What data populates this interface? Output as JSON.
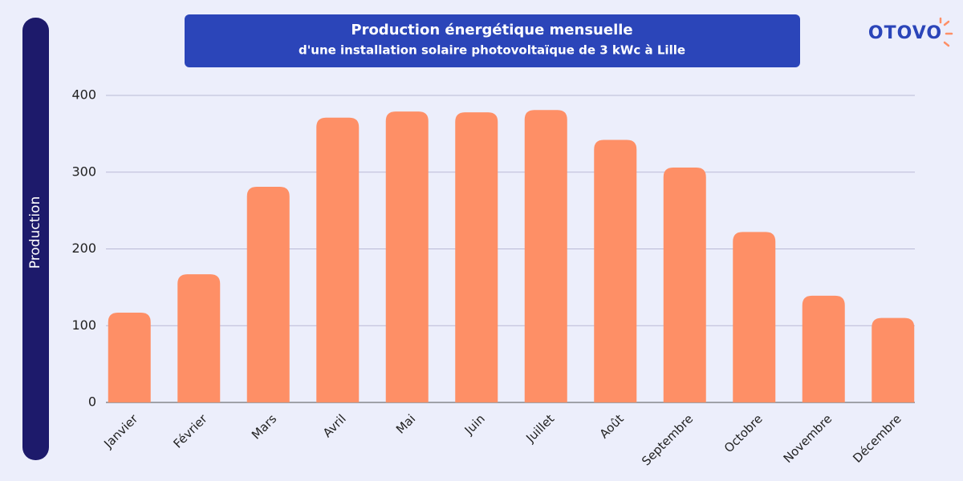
{
  "brand": "OTOVO",
  "chart_data": {
    "type": "bar",
    "title": "Production énergétique mensuelle",
    "subtitle": "d'une installation solaire photovoltaïque de 3 kWc à Lille",
    "y_label": "Production",
    "categories": [
      "Janvier",
      "Février",
      "Mars",
      "Avril",
      "Mai",
      "Juin",
      "Juillet",
      "Août",
      "Septembre",
      "Octobre",
      "Novembre",
      "Décembre"
    ],
    "values": [
      117,
      167,
      281,
      371,
      379,
      378,
      381,
      342,
      306,
      222,
      139,
      110
    ],
    "color": "#fe8f66",
    "ylim": [
      0,
      400
    ],
    "yticks": [
      0,
      100,
      200,
      300,
      400
    ],
    "grid": true
  }
}
